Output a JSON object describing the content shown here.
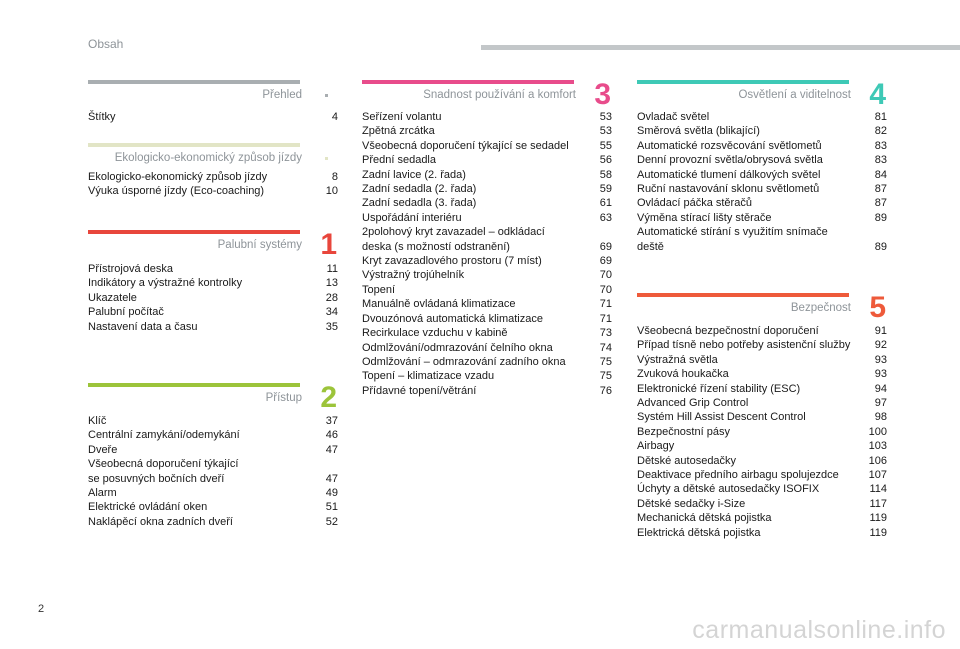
{
  "header": {
    "title": "Obsah"
  },
  "columns": [
    {
      "sections": [
        {
          "title": "Přehled",
          "number": "",
          "color": "#a9aeb1",
          "items": [
            {
              "label": "Štítky",
              "page": "4"
            }
          ]
        },
        {
          "title": "Ekologicko-ekonomický způsob jízdy",
          "number": "",
          "color": "#e2e5c6",
          "items": [
            {
              "label": "Ekologicko-ekonomický způsob jízdy",
              "page": "8"
            },
            {
              "label": "Výuka úsporné jízdy (Eco-coaching)",
              "page": "10"
            }
          ]
        },
        {
          "title": "Palubní systémy",
          "number": "1",
          "color": "#e8463c",
          "items": [
            {
              "label": "Přístrojová deska",
              "page": "11"
            },
            {
              "label": "Indikátory a výstražné kontrolky",
              "page": "13"
            },
            {
              "label": "Ukazatele",
              "page": "28"
            },
            {
              "label": "Palubní počítač",
              "page": "34"
            },
            {
              "label": "Nastavení data a času",
              "page": "35"
            }
          ]
        },
        {
          "title": "Přístup",
          "number": "2",
          "color": "#9cc43a",
          "items": [
            {
              "label": "Klíč",
              "page": "37"
            },
            {
              "label": "Centrální zamykání/odemykání",
              "page": "46"
            },
            {
              "label": "Dveře",
              "page": "47"
            },
            {
              "label": "Všeobecná doporučení týkající\nse posuvných bočních dveří",
              "page": "47"
            },
            {
              "label": "Alarm",
              "page": "49"
            },
            {
              "label": "Elektrické ovládání oken",
              "page": "51"
            },
            {
              "label": "Naklápěcí okna zadních dveří",
              "page": "52"
            }
          ]
        }
      ]
    },
    {
      "sections": [
        {
          "title": "Snadnost používání a komfort",
          "number": "3",
          "color": "#e84c8b",
          "items": [
            {
              "label": "Seřízení volantu",
              "page": "53"
            },
            {
              "label": "Zpětná zrcátka",
              "page": "53"
            },
            {
              "label": "Všeobecná doporučení týkající se sedadel",
              "page": "55"
            },
            {
              "label": "Přední sedadla",
              "page": "56"
            },
            {
              "label": "Zadní lavice (2. řada)",
              "page": "58"
            },
            {
              "label": "Zadní sedadla (2. řada)",
              "page": "59"
            },
            {
              "label": "Zadní sedadla (3. řada)",
              "page": "61"
            },
            {
              "label": "Uspořádání interiéru",
              "page": "63"
            },
            {
              "label": "2polohový kryt zavazadel – odkládací\ndeska (s možností odstranění)",
              "page": "69"
            },
            {
              "label": "Kryt zavazadlového prostoru (7 míst)",
              "page": "69"
            },
            {
              "label": "Výstražný trojúhelník",
              "page": "70"
            },
            {
              "label": "Topení",
              "page": "70"
            },
            {
              "label": "Manuálně ovládaná klimatizace",
              "page": "71"
            },
            {
              "label": "Dvouzónová automatická klimatizace",
              "page": "71"
            },
            {
              "label": "Recirkulace vzduchu v kabině",
              "page": "73"
            },
            {
              "label": "Odmlžování/odmrazování čelního okna",
              "page": "74"
            },
            {
              "label": "Odmlžování – odmrazování zadního okna",
              "page": "75"
            },
            {
              "label": "Topení – klimatizace vzadu",
              "page": "75"
            },
            {
              "label": "Přídavné topení/větrání",
              "page": "76"
            }
          ]
        }
      ]
    },
    {
      "sections": [
        {
          "title": "Osvětlení a viditelnost",
          "number": "4",
          "color": "#3ec9b6",
          "items": [
            {
              "label": "Ovladač světel",
              "page": "81"
            },
            {
              "label": "Směrová světla (blikající)",
              "page": "82"
            },
            {
              "label": "Automatické rozsvěcování světlometů",
              "page": "83"
            },
            {
              "label": "Denní provozní světla/obrysová světla",
              "page": "83"
            },
            {
              "label": "Automatické tlumení dálkových světel",
              "page": "84"
            },
            {
              "label": "Ruční nastavování sklonu světlometů",
              "page": "87"
            },
            {
              "label": "Ovládací páčka stěračů",
              "page": "87"
            },
            {
              "label": "Výměna stírací lišty stěrače",
              "page": "89"
            },
            {
              "label": "Automatické stírání s využitím snímače\ndeště",
              "page": "89"
            }
          ]
        },
        {
          "title": "Bezpečnost",
          "number": "5",
          "color": "#ee5a3a",
          "items": [
            {
              "label": "Všeobecná bezpečnostní doporučení",
              "page": "91"
            },
            {
              "label": "Případ tísně nebo potřeby asistenční služby",
              "page": "92"
            },
            {
              "label": "Výstražná světla",
              "page": "93"
            },
            {
              "label": "Zvuková houkačka",
              "page": "93"
            },
            {
              "label": "Elektronické řízení stability (ESC)",
              "page": "94"
            },
            {
              "label": "Advanced Grip Control",
              "page": "97"
            },
            {
              "label": "Systém Hill Assist Descent Control",
              "page": "98"
            },
            {
              "label": "Bezpečnostní pásy",
              "page": "100"
            },
            {
              "label": "Airbagy",
              "page": "103"
            },
            {
              "label": "Dětské autosedačky",
              "page": "106"
            },
            {
              "label": "Deaktivace předního airbagu spolujezdce",
              "page": "107"
            },
            {
              "label": "Úchyty a dětské autosedačky ISOFIX",
              "page": "114"
            },
            {
              "label": "Dětské sedačky i-Size",
              "page": "117"
            },
            {
              "label": "Mechanická dětská pojistka",
              "page": "119"
            },
            {
              "label": "Elektrická dětská pojistka",
              "page": "119"
            }
          ]
        }
      ]
    }
  ],
  "footer": {
    "page_number": "2",
    "watermark": "carmanualsonline.info"
  }
}
